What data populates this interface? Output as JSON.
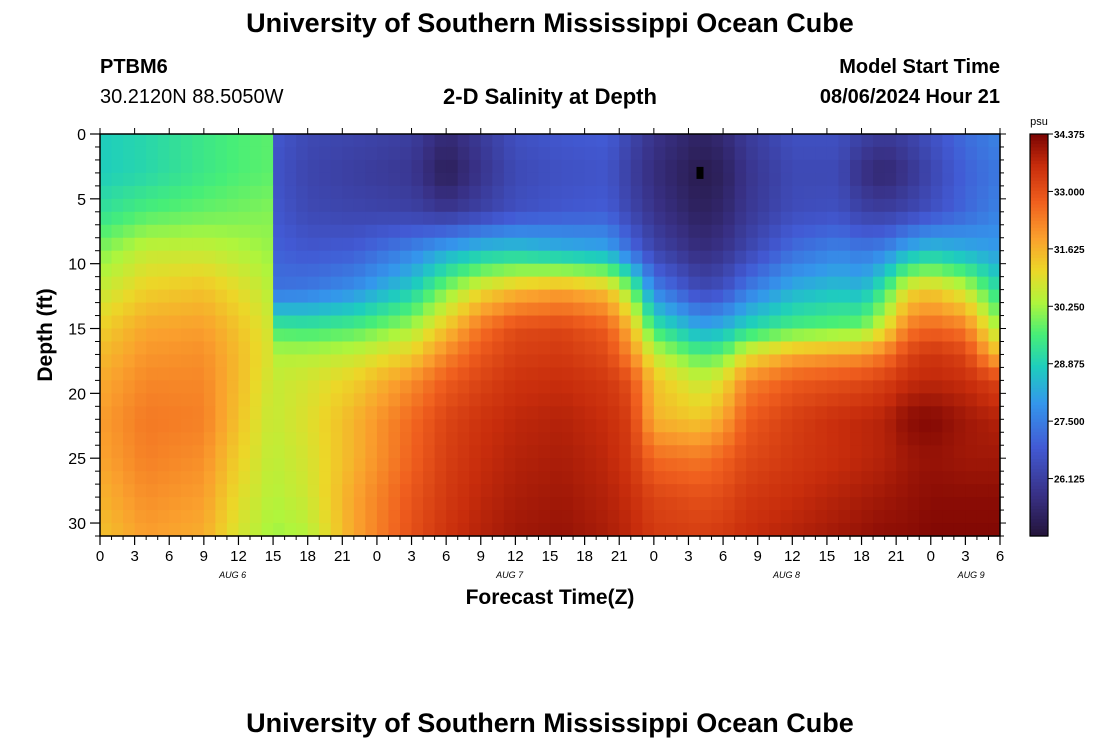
{
  "header": {
    "title": "University of Southern Mississippi Ocean Cube",
    "station_id": "PTBM6",
    "coordinates": "30.2120N  88.5050W",
    "subtitle": "2-D Salinity at Depth",
    "model_start_label": "Model Start Time",
    "model_start_value": "08/06/2024 Hour 21"
  },
  "footer": {
    "title": "University of Southern Mississippi Ocean Cube"
  },
  "chart_data": {
    "type": "heatmap",
    "title": "2-D Salinity at Depth",
    "xlabel": "Forecast Time(Z)",
    "ylabel": "Depth (ft)",
    "x_hours_range": [
      0,
      78
    ],
    "x_tick_labels": [
      "0",
      "3",
      "6",
      "9",
      "12",
      "15",
      "18",
      "21",
      "0",
      "3",
      "6",
      "9",
      "12",
      "15",
      "18",
      "21",
      "0",
      "3",
      "6",
      "9",
      "12",
      "15",
      "18",
      "21",
      "0",
      "3",
      "6"
    ],
    "date_labels": [
      {
        "label": "AUG 6",
        "hour": 11.5
      },
      {
        "label": "AUG 7",
        "hour": 35.5
      },
      {
        "label": "AUG 8",
        "hour": 59.5
      },
      {
        "label": "AUG 9",
        "hour": 75.5
      }
    ],
    "y_ticks": [
      0,
      5,
      10,
      15,
      20,
      25,
      30
    ],
    "y_range": [
      0,
      31
    ],
    "colorbar": {
      "unit": "psu",
      "min": 24.75,
      "max": 34.375,
      "tick_values": [
        34.375,
        33.0,
        31.625,
        30.25,
        28.875,
        27.5,
        26.125
      ],
      "tick_labels": [
        "34.375",
        "33.000",
        "31.625",
        "30.250",
        "28.875",
        "27.500",
        "26.125"
      ]
    },
    "marker": {
      "hour": 52,
      "depth": 3,
      "shape": "square",
      "color": "#000000"
    },
    "salinity_grid": {
      "depths_ft": [
        0,
        3,
        6,
        9,
        12,
        15,
        17,
        19,
        22,
        25,
        28,
        31
      ],
      "hours": [
        0,
        4,
        9,
        12,
        14.5,
        15,
        18,
        22,
        27,
        30,
        33,
        36,
        40,
        44,
        46,
        48,
        52,
        54,
        56,
        60,
        64,
        66,
        68,
        70,
        72,
        75,
        78
      ],
      "values": [
        [
          28.8,
          29.0,
          29.4,
          29.6,
          29.7,
          26.8,
          26.4,
          26.3,
          26.1,
          25.5,
          26.0,
          26.6,
          26.8,
          26.9,
          26.3,
          25.8,
          25.3,
          25.5,
          26.0,
          26.6,
          26.6,
          26.2,
          26.0,
          26.2,
          26.6,
          27.2,
          27.6
        ],
        [
          28.8,
          29.0,
          29.4,
          29.6,
          29.7,
          26.7,
          26.3,
          26.1,
          25.9,
          25.1,
          25.8,
          26.4,
          26.6,
          26.7,
          26.1,
          25.6,
          25.0,
          25.2,
          25.8,
          26.4,
          26.4,
          25.7,
          25.4,
          25.8,
          26.3,
          27.0,
          27.4
        ],
        [
          29.2,
          29.6,
          29.8,
          29.9,
          30.0,
          26.8,
          26.4,
          26.3,
          26.2,
          25.9,
          26.2,
          26.6,
          26.8,
          26.9,
          26.3,
          25.8,
          25.2,
          25.4,
          25.9,
          26.5,
          26.6,
          26.2,
          26.1,
          26.3,
          26.6,
          27.1,
          27.6
        ],
        [
          30.0,
          30.6,
          30.6,
          30.4,
          30.2,
          27.0,
          26.8,
          26.9,
          27.6,
          28.2,
          28.6,
          28.7,
          28.4,
          28.2,
          27.2,
          26.3,
          25.6,
          25.8,
          26.3,
          27.2,
          27.6,
          27.4,
          27.6,
          28.3,
          28.6,
          28.3,
          28.0
        ],
        [
          30.6,
          31.2,
          31.4,
          31.0,
          30.5,
          27.3,
          27.4,
          27.8,
          28.8,
          30.0,
          31.0,
          31.5,
          31.8,
          31.4,
          30.0,
          27.6,
          26.4,
          26.6,
          27.4,
          28.3,
          28.6,
          28.4,
          29.4,
          31.0,
          31.3,
          30.6,
          29.0
        ],
        [
          31.2,
          31.8,
          31.9,
          31.4,
          30.8,
          29.5,
          29.4,
          29.6,
          30.3,
          31.4,
          32.5,
          33.1,
          33.2,
          32.8,
          31.6,
          29.4,
          28.2,
          28.4,
          29.0,
          29.6,
          29.8,
          29.9,
          30.9,
          32.4,
          32.7,
          32.4,
          30.2
        ],
        [
          31.5,
          32.0,
          32.1,
          31.5,
          30.9,
          30.4,
          30.4,
          30.6,
          31.2,
          32.2,
          32.9,
          33.3,
          33.4,
          33.1,
          32.2,
          30.6,
          29.6,
          29.8,
          30.9,
          31.7,
          31.9,
          32.0,
          32.4,
          33.2,
          33.5,
          33.2,
          31.4
        ],
        [
          31.7,
          32.2,
          32.2,
          31.5,
          30.8,
          30.6,
          30.8,
          31.2,
          32.1,
          32.8,
          33.2,
          33.5,
          33.6,
          33.4,
          33.0,
          31.4,
          30.6,
          31.0,
          32.2,
          32.8,
          33.0,
          33.1,
          33.3,
          33.6,
          33.7,
          33.6,
          33.2
        ],
        [
          31.9,
          32.4,
          32.3,
          31.4,
          30.7,
          30.6,
          30.9,
          31.6,
          32.6,
          33.2,
          33.5,
          33.7,
          33.8,
          33.6,
          33.3,
          31.6,
          31.3,
          31.8,
          32.8,
          33.3,
          33.6,
          33.7,
          33.8,
          34.2,
          34.3,
          34.0,
          33.8
        ],
        [
          31.8,
          32.3,
          32.1,
          31.2,
          30.6,
          30.5,
          30.8,
          31.6,
          32.7,
          33.3,
          33.6,
          33.8,
          33.9,
          33.7,
          33.4,
          32.6,
          32.4,
          32.7,
          33.1,
          33.4,
          33.6,
          33.7,
          33.8,
          34.0,
          34.1,
          34.0,
          34.0
        ],
        [
          31.6,
          32.1,
          31.9,
          31.0,
          30.5,
          30.4,
          30.7,
          31.8,
          32.9,
          33.4,
          33.7,
          33.9,
          34.0,
          33.8,
          33.6,
          33.2,
          33.0,
          33.1,
          33.4,
          33.6,
          33.8,
          33.9,
          34.0,
          34.1,
          34.2,
          34.2,
          34.2
        ],
        [
          31.4,
          31.9,
          31.7,
          30.8,
          30.3,
          30.2,
          30.4,
          31.8,
          33.0,
          33.5,
          33.8,
          34.0,
          34.1,
          33.9,
          33.7,
          33.4,
          33.3,
          33.4,
          33.6,
          33.8,
          34.0,
          34.1,
          34.2,
          34.2,
          34.3,
          34.3,
          34.3
        ]
      ]
    }
  }
}
